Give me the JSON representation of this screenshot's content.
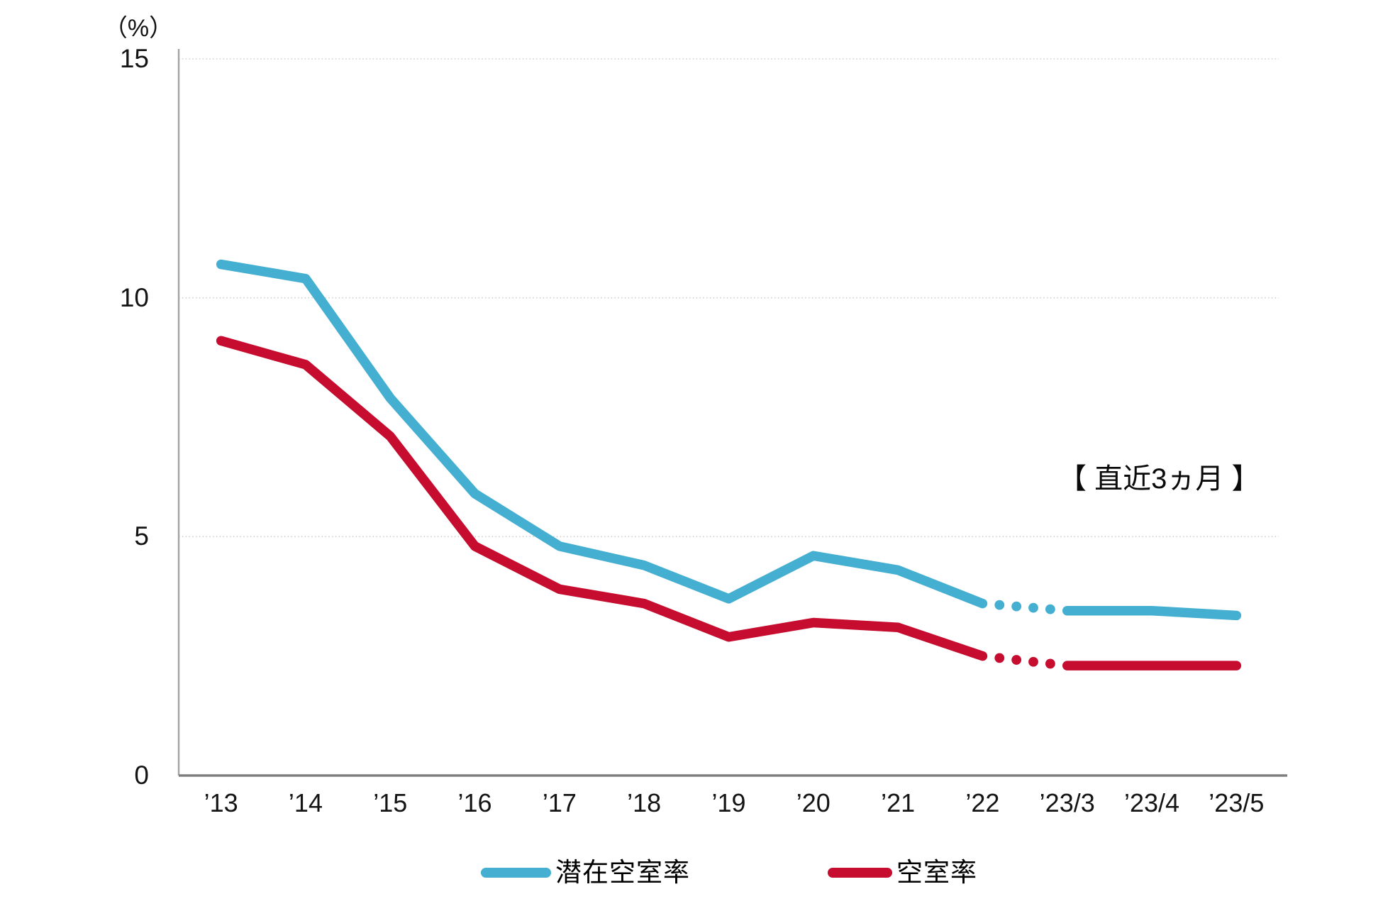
{
  "chart_data": {
    "type": "line",
    "unit_label": "（%）",
    "annotation": "【 直近3ヵ月 】",
    "categories": [
      "’13",
      "’14",
      "’15",
      "’16",
      "’17",
      "’18",
      "’19",
      "’20",
      "’21",
      "’22",
      "’23/3",
      "’23/4",
      "’23/5"
    ],
    "y_ticks": [
      15,
      10,
      5,
      0
    ],
    "ylim": [
      0,
      15
    ],
    "grid": "horizontal-dotted",
    "dotted_gap": {
      "from_index": 9,
      "to_index": 10,
      "style": "round-dots"
    },
    "legend_position": "bottom",
    "series": [
      {
        "name": "潜在空室率",
        "color": "#45afd2",
        "values": [
          10.7,
          10.4,
          7.9,
          5.9,
          4.8,
          4.4,
          3.7,
          4.6,
          4.3,
          3.6,
          3.45,
          3.45,
          3.35
        ]
      },
      {
        "name": "空室率",
        "color": "#c60c2f",
        "values": [
          9.1,
          8.6,
          7.1,
          4.8,
          3.9,
          3.6,
          2.9,
          3.2,
          3.1,
          2.5,
          2.3,
          2.3,
          2.3
        ]
      }
    ]
  }
}
